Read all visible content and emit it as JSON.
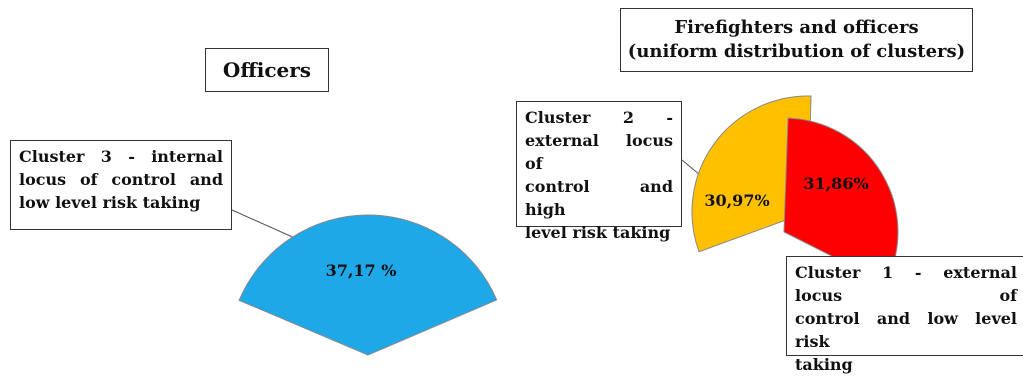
{
  "chart_data": [
    {
      "type": "pie",
      "title": "Officers",
      "slices": [
        {
          "label": "Cluster 3 - internal locus of control and low level risk taking",
          "label_lines": [
            "Cluster 3 - internal",
            "locus of control and",
            "low level risk taking"
          ],
          "value": 37.17,
          "display": "37,17 %",
          "color": "#1ea8e8"
        }
      ]
    },
    {
      "type": "pie",
      "title": "Firefighters and officers (uniform distribution of clusters)",
      "title_lines": [
        "Firefighters and officers",
        "(uniform distribution of clusters)"
      ],
      "slices": [
        {
          "label": "Cluster 2 - external locus of control and high level risk taking",
          "label_lines": [
            "Cluster 2 -",
            "external locus of",
            "control and high",
            "level risk taking"
          ],
          "value": 30.97,
          "display": "30,97%",
          "color": "#ffc000"
        },
        {
          "label": "Cluster 1 - external locus of control and low level risk taking",
          "label_lines": [
            "Cluster 1 - external locus of",
            "control and low level risk",
            "taking"
          ],
          "value": 31.86,
          "display": "31,86%",
          "color": "#ff0000"
        }
      ]
    }
  ]
}
